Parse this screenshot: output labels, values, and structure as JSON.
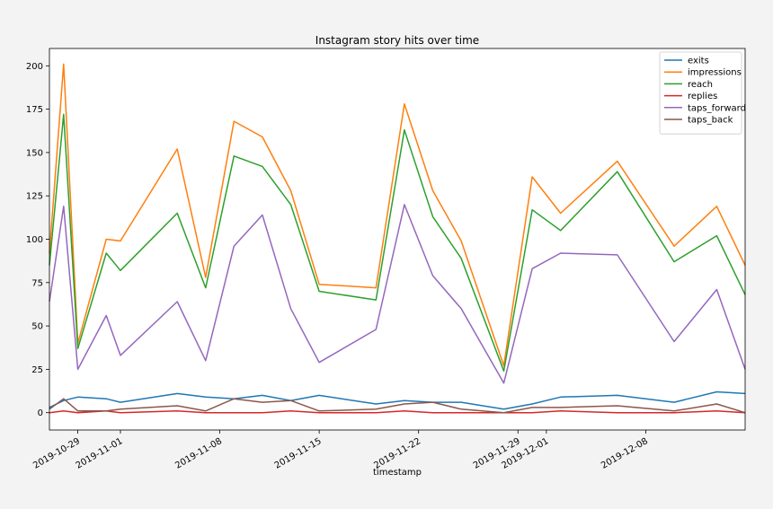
{
  "chart_data": {
    "type": "line",
    "title": "Instagram story hits over time",
    "xlabel": "timestamp",
    "ylabel": "",
    "xlim": [
      "2019-10-27",
      "2019-12-15"
    ],
    "ylim": [
      -10,
      210
    ],
    "yticks": [
      0,
      25,
      50,
      75,
      100,
      125,
      150,
      175,
      200
    ],
    "xticks": [
      "2019-10-29",
      "2019-11-01",
      "2019-11-08",
      "2019-11-15",
      "2019-11-22",
      "2019-11-29",
      "2019-12-01",
      "2019-12-08"
    ],
    "legend_position": "top-right",
    "x": [
      "2019-10-27",
      "2019-10-28",
      "2019-10-29",
      "2019-10-31",
      "2019-11-01",
      "2019-11-05",
      "2019-11-07",
      "2019-11-09",
      "2019-11-11",
      "2019-11-13",
      "2019-11-15",
      "2019-11-19",
      "2019-11-21",
      "2019-11-23",
      "2019-11-25",
      "2019-11-28",
      "2019-11-30",
      "2019-12-02",
      "2019-12-06",
      "2019-12-10",
      "2019-12-13",
      "2019-12-15"
    ],
    "series": [
      {
        "name": "exits",
        "color": "#1f77b4",
        "values": [
          3,
          7,
          9,
          8,
          6,
          11,
          9,
          8,
          10,
          7,
          10,
          5,
          7,
          6,
          6,
          2,
          5,
          9,
          10,
          6,
          12,
          11
        ]
      },
      {
        "name": "impressions",
        "color": "#ff7f0e",
        "values": [
          92,
          201,
          40,
          100,
          99,
          152,
          78,
          168,
          159,
          128,
          74,
          72,
          178,
          128,
          99,
          27,
          136,
          115,
          145,
          96,
          119,
          85
        ]
      },
      {
        "name": "reach",
        "color": "#2ca02c",
        "values": [
          85,
          172,
          37,
          92,
          82,
          115,
          72,
          148,
          142,
          120,
          70,
          65,
          163,
          113,
          89,
          24,
          117,
          105,
          139,
          87,
          102,
          68
        ]
      },
      {
        "name": "replies",
        "color": "#d62728",
        "values": [
          0,
          1,
          0,
          1,
          0,
          1,
          0,
          0,
          0,
          1,
          0,
          0,
          1,
          0,
          0,
          0,
          0,
          1,
          0,
          0,
          1,
          0
        ]
      },
      {
        "name": "taps_forward",
        "color": "#9467bd",
        "values": [
          64,
          119,
          25,
          56,
          33,
          64,
          30,
          96,
          114,
          60,
          29,
          48,
          120,
          79,
          60,
          17,
          83,
          92,
          91,
          41,
          71,
          25
        ]
      },
      {
        "name": "taps_back",
        "color": "#8c564b",
        "values": [
          2,
          8,
          1,
          1,
          2,
          4,
          1,
          8,
          6,
          7,
          1,
          2,
          5,
          6,
          2,
          0,
          3,
          3,
          4,
          1,
          5,
          0
        ]
      }
    ]
  }
}
